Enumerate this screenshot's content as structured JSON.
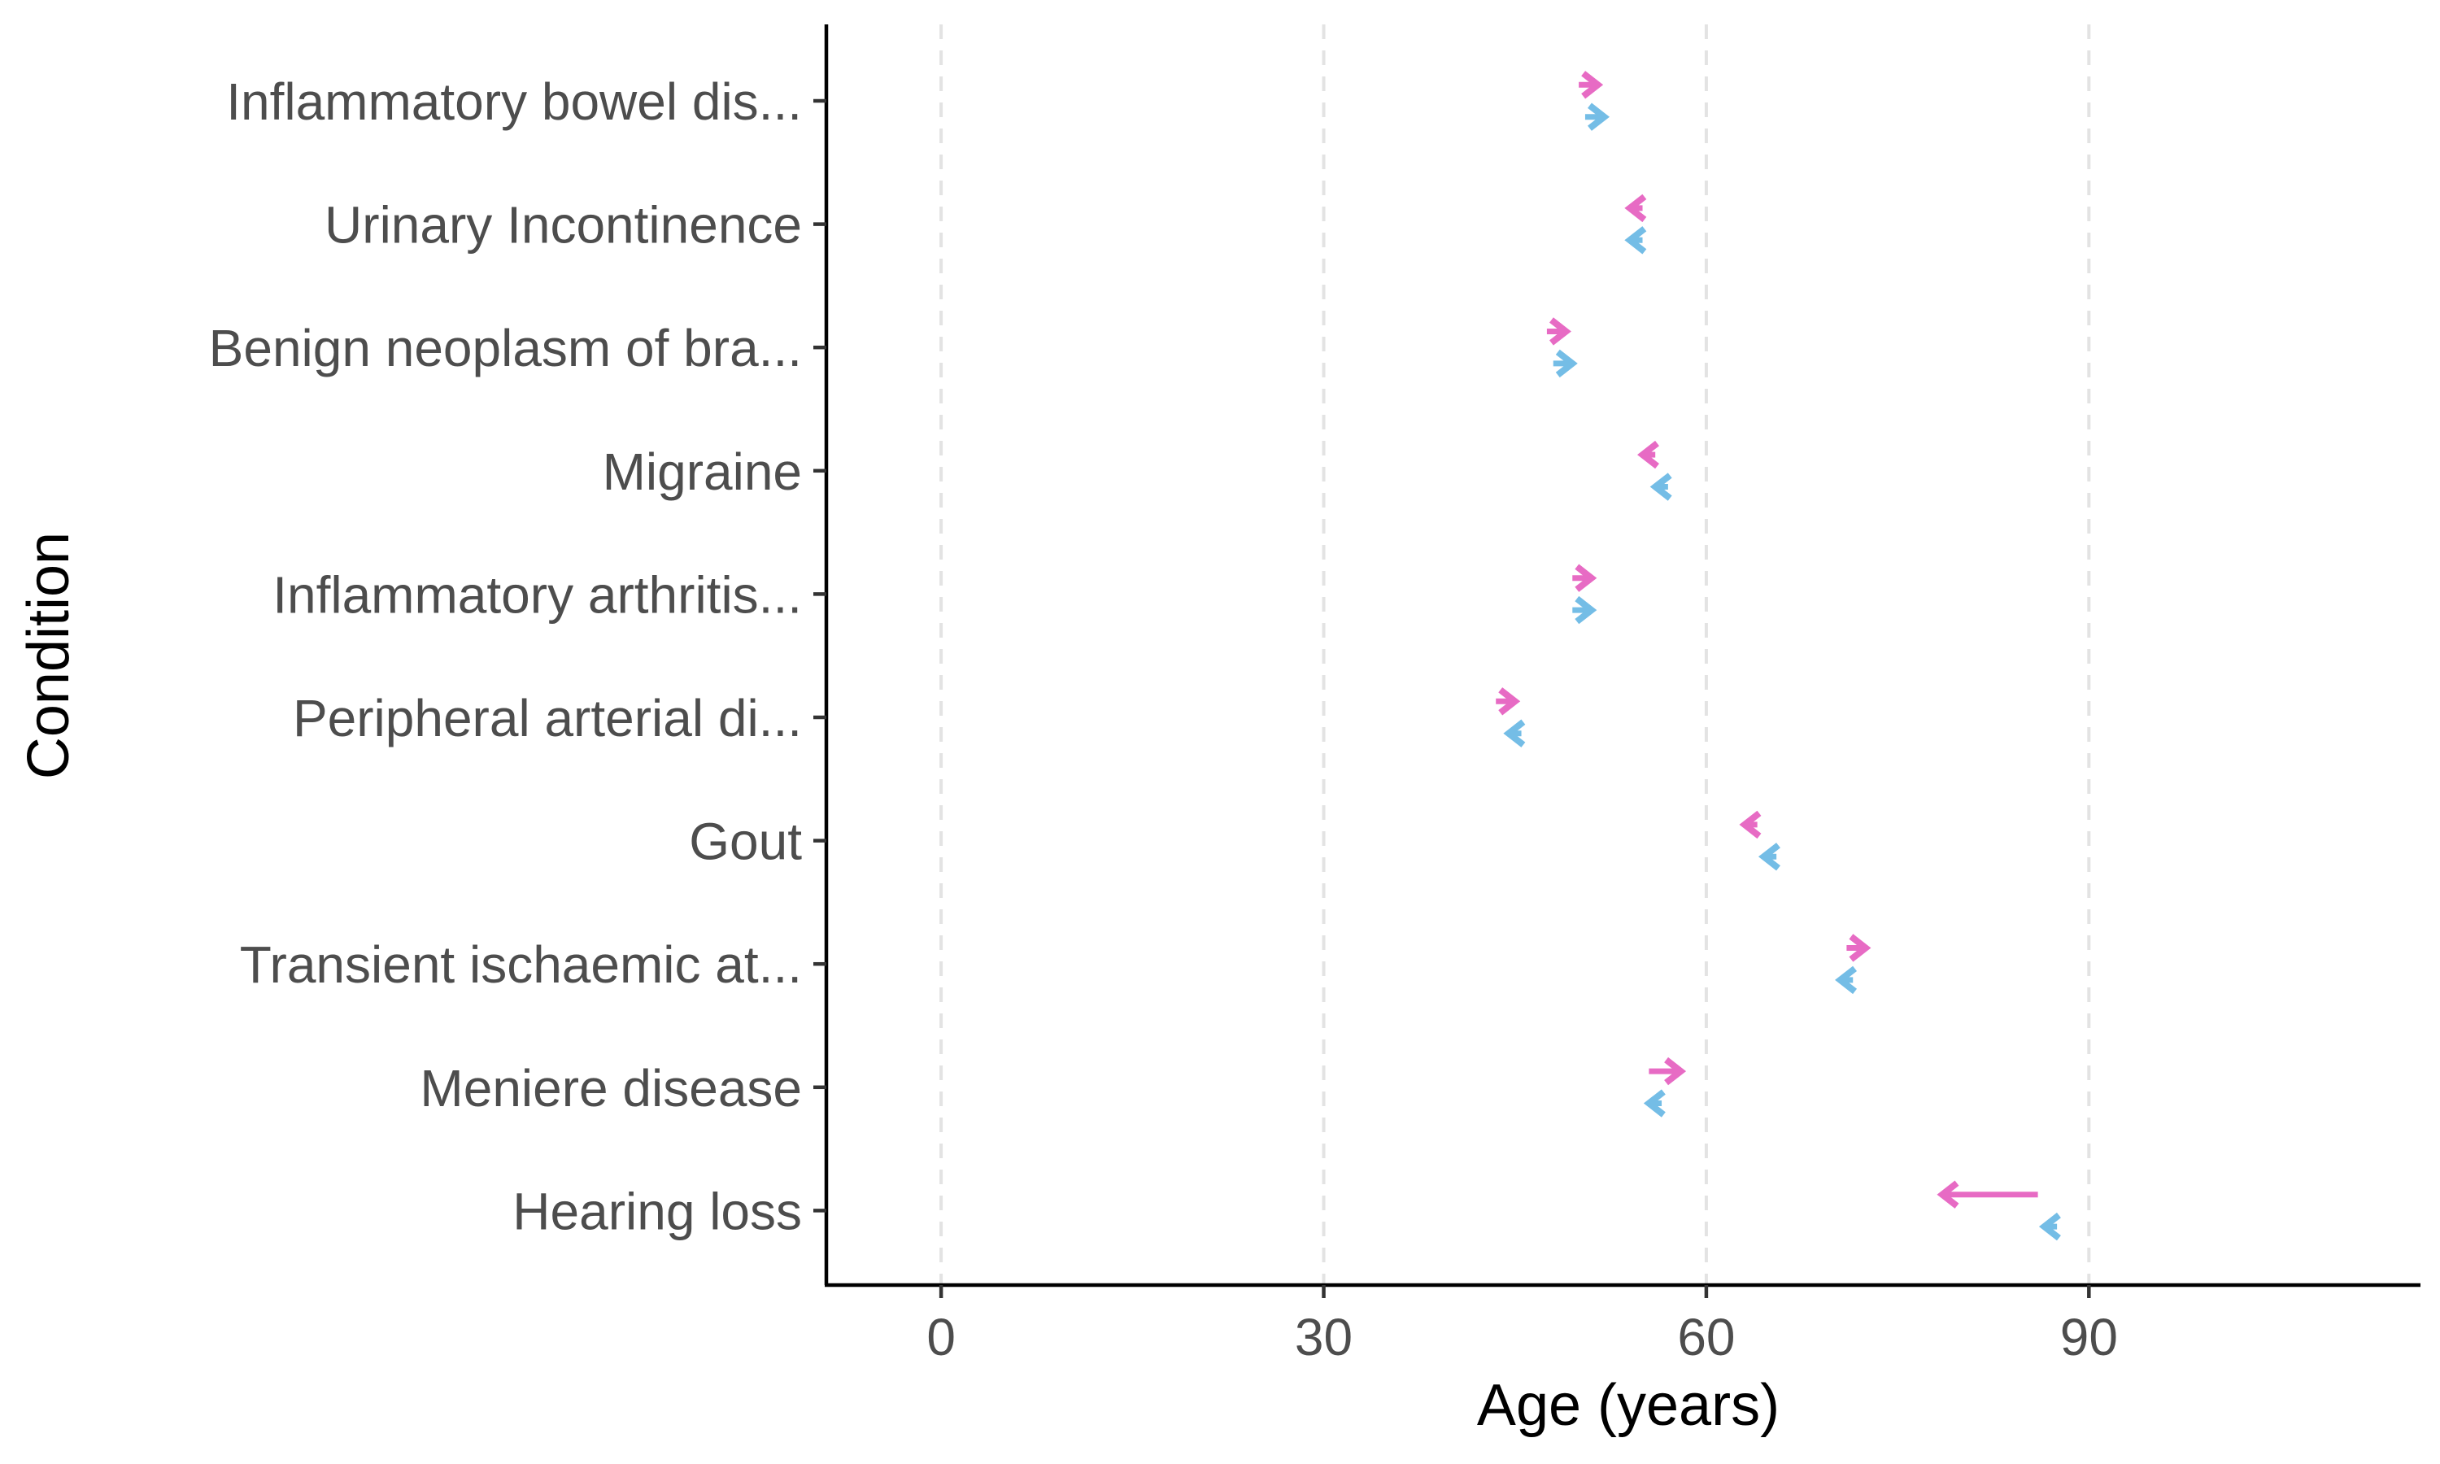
{
  "chart_data": {
    "type": "arrow",
    "xlabel": "Age (years)",
    "ylabel": "Condition",
    "xlim": [
      -9,
      116
    ],
    "x_ticks": [
      0,
      30,
      60,
      90
    ],
    "grid": {
      "vertical_major": true,
      "style": "dashed"
    },
    "categories": [
      "Inflammatory bowel dis...",
      "Urinary Incontinence",
      "Benign neoplasm of bra...",
      "Migraine",
      "Inflammatory arthritis...",
      "Peripheral arterial di...",
      "Gout",
      "Transient ischaemic at...",
      "Meniere disease",
      "Hearing loss"
    ],
    "series": [
      {
        "color": "#E76BC4",
        "start": [
          50.0,
          55.0,
          47.5,
          56.0,
          49.5,
          43.5,
          64.0,
          71.0,
          55.5,
          86.0
        ],
        "end": [
          51.5,
          54.0,
          49.0,
          55.0,
          51.0,
          45.0,
          63.0,
          72.5,
          58.0,
          78.5
        ]
      },
      {
        "color": "#74BDE6",
        "start": [
          50.5,
          55.0,
          48.0,
          57.0,
          49.5,
          45.5,
          65.5,
          71.5,
          56.5,
          87.5
        ],
        "end": [
          52.0,
          54.0,
          49.5,
          56.0,
          51.0,
          44.5,
          64.5,
          70.5,
          55.5,
          86.5
        ]
      }
    ]
  }
}
